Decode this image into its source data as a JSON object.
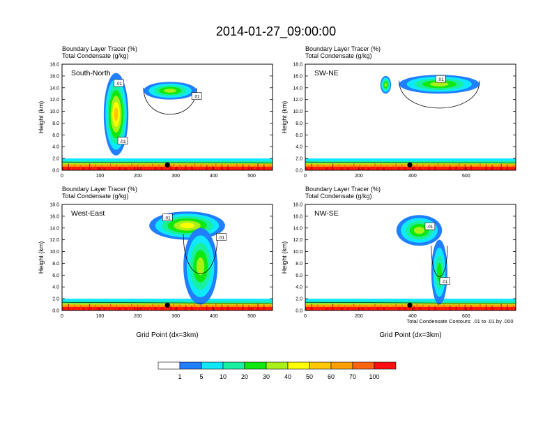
{
  "title": "2014-01-27_09:00:00",
  "colors": {
    "levels": [
      "#ffffff",
      "#1f7fff",
      "#10e8ff",
      "#18f0a0",
      "#10e810",
      "#a8f018",
      "#ffff00",
      "#ffc800",
      "#ffa000",
      "#ff6410",
      "#ff1010"
    ],
    "contour": "#000000",
    "background": "#ffffff"
  },
  "colorbar": {
    "labels": [
      "1",
      "5",
      "10",
      "20",
      "30",
      "40",
      "50",
      "60",
      "70",
      "100"
    ]
  },
  "footnote": "Total Condensate Contours: .01 to .01 by .000",
  "xlabel": "Grid Point (dx=3km)",
  "chart_data": [
    {
      "type": "heatmap",
      "label": "South-North",
      "subtitle1": "Boundary Layer Tracer    (%)",
      "subtitle2": "Total Condensate    (g/kg)",
      "ylabel": "Height (km)",
      "xlabel": "",
      "xlim": [
        0,
        555
      ],
      "ylim": [
        0,
        18
      ],
      "xticks": [
        0,
        100,
        200,
        300,
        400,
        500
      ],
      "yticks": [
        "0.0",
        "2.0",
        "4.0",
        "6.0",
        "8.0",
        "10.0",
        "12.0",
        "14.0",
        "16.0",
        "18.0"
      ],
      "contour_labels": [
        ".01",
        ".01",
        ".01"
      ],
      "contour_label_pos": [
        [
          150,
          14.8
        ],
        [
          355,
          12.6
        ],
        [
          160,
          5.0
        ]
      ],
      "marker_x": 278,
      "blobs": [
        {
          "x": [
            110,
            175
          ],
          "y": [
            2.5,
            16.5
          ],
          "peak": 0.62
        },
        {
          "x": [
            215,
            355
          ],
          "y": [
            12.0,
            15.0
          ],
          "peak": 0.35
        }
      ]
    },
    {
      "type": "heatmap",
      "label": "SW-NE",
      "subtitle1": "Boundary Layer Tracer    (%)",
      "subtitle2": "Total Condensate    (g/kg)",
      "ylabel": "Height (km)",
      "xlabel": "",
      "xlim": [
        0,
        785
      ],
      "ylim": [
        0,
        18
      ],
      "xticks": [
        0,
        200,
        400,
        600
      ],
      "yticks": [
        "0.0",
        "2.0",
        "4.0",
        "6.0",
        "8.0",
        "10.0",
        "12.0",
        "14.0",
        "16.0",
        "18.0"
      ],
      "contour_labels": [
        ".01"
      ],
      "contour_label_pos": [
        [
          505,
          15.5
        ]
      ],
      "marker_x": 390,
      "blobs": [
        {
          "x": [
            280,
            320
          ],
          "y": [
            13.0,
            16.0
          ],
          "peak": 0.35
        },
        {
          "x": [
            350,
            650
          ],
          "y": [
            13.0,
            16.2
          ],
          "peak": 0.38
        }
      ]
    },
    {
      "type": "heatmap",
      "label": "West-East",
      "subtitle1": "Boundary Layer Tracer    (%)",
      "subtitle2": "Total Condensate    (g/kg)",
      "ylabel": "Height (km)",
      "xlabel": "Grid Point (dx=3km)",
      "xlim": [
        0,
        555
      ],
      "ylim": [
        0,
        18
      ],
      "xticks": [
        0,
        100,
        200,
        300,
        400,
        500
      ],
      "yticks": [
        "0.0",
        "2.0",
        "4.0",
        "6.0",
        "8.0",
        "10.0",
        "12.0",
        "14.0",
        "16.0",
        "18.0"
      ],
      "contour_labels": [
        ".01",
        ".01"
      ],
      "contour_label_pos": [
        [
          278,
          15.8
        ],
        [
          420,
          12.5
        ]
      ],
      "marker_x": 278,
      "blobs": [
        {
          "x": [
            230,
            430
          ],
          "y": [
            12.0,
            16.8
          ],
          "peak": 0.5
        },
        {
          "x": [
            320,
            410
          ],
          "y": [
            1.0,
            14.0
          ],
          "peak": 0.4
        }
      ]
    },
    {
      "type": "heatmap",
      "label": "NW-SE",
      "subtitle1": "Boundary Layer Tracer    (%)",
      "subtitle2": "Total Condensate    (g/kg)",
      "ylabel": "Height (km)",
      "xlabel": "Grid Point (dx=3km)",
      "xlim": [
        0,
        785
      ],
      "ylim": [
        0,
        18
      ],
      "xticks": [
        0,
        200,
        400,
        600
      ],
      "yticks": [
        "0.0",
        "2.0",
        "4.0",
        "6.0",
        "8.0",
        "10.0",
        "12.0",
        "14.0",
        "16.0",
        "18.0"
      ],
      "contour_labels": [
        ".01",
        ".01"
      ],
      "contour_label_pos": [
        [
          465,
          14.3
        ],
        [
          520,
          5.0
        ]
      ],
      "marker_x": 390,
      "blobs": [
        {
          "x": [
            340,
            510
          ],
          "y": [
            11.0,
            16.2
          ],
          "peak": 0.38
        },
        {
          "x": [
            470,
            530
          ],
          "y": [
            1.0,
            12.0
          ],
          "peak": 0.3
        }
      ]
    }
  ]
}
